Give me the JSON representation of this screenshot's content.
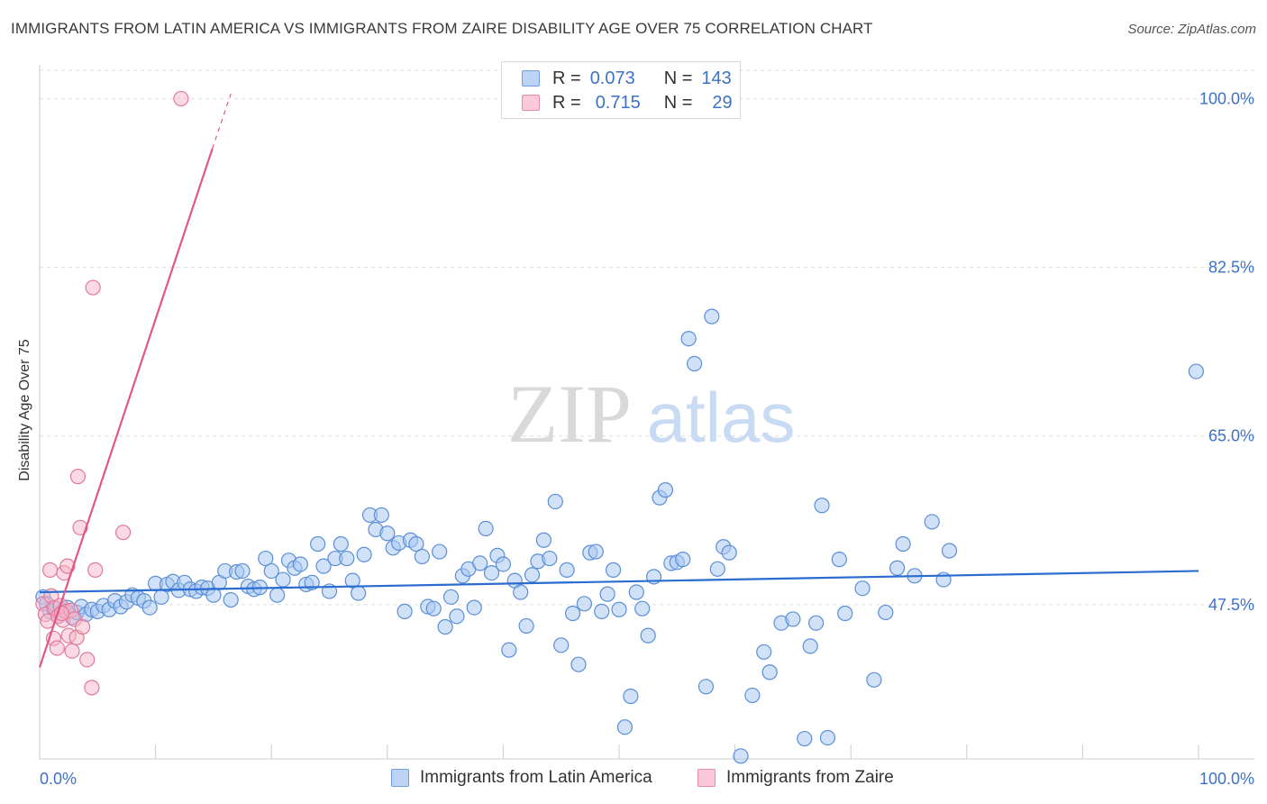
{
  "header": {
    "title": "IMMIGRANTS FROM LATIN AMERICA VS IMMIGRANTS FROM ZAIRE DISABILITY AGE OVER 75 CORRELATION CHART",
    "source": "Source: ZipAtlas.com"
  },
  "watermark": {
    "zip": "ZIP",
    "atlas": "atlas"
  },
  "legend_top": {
    "rows": [
      {
        "r_label": "R =",
        "r_value": "0.073",
        "n_label": "N =",
        "n_value": "143"
      },
      {
        "r_label": "R =",
        "r_value": "0.715",
        "n_label": "N =",
        "n_value": "29"
      }
    ]
  },
  "legend_bottom": {
    "items": [
      {
        "label": "Immigrants from Latin America"
      },
      {
        "label": "Immigrants from Zaire"
      }
    ]
  },
  "colors": {
    "blue_fill": "#a9c8f2",
    "blue_stroke": "#5b8fd6",
    "blue_line": "#2a6ccf",
    "pink_fill": "#f7b6c8",
    "pink_stroke": "#e07a9c",
    "pink_line": "#e0578a",
    "tick_text": "#3d72c6",
    "grid": "#dddddd"
  },
  "chart_data": {
    "type": "scatter",
    "xlabel": "",
    "ylabel": "Disability Age Over 75",
    "xlim": [
      0,
      100
    ],
    "ylim": [
      31.5,
      103.5
    ],
    "x_tick_labels": [
      "0.0%",
      "100.0%"
    ],
    "y_ticks": [
      {
        "value": 47.5,
        "label": "47.5%"
      },
      {
        "value": 65.0,
        "label": "65.0%"
      },
      {
        "value": 82.5,
        "label": "82.5%"
      },
      {
        "value": 100.0,
        "label": "100.0%"
      }
    ],
    "grid": true,
    "legend_position": "top-center",
    "series": [
      {
        "name": "Immigrants from Latin America",
        "r": 0.073,
        "n": 143,
        "trend": {
          "x": [
            0,
            100
          ],
          "y": [
            48.8,
            51.0
          ]
        },
        "points": [
          [
            0.3,
            48.3
          ],
          [
            0.6,
            47.6
          ],
          [
            0.9,
            46.8
          ],
          [
            1.2,
            47.1
          ],
          [
            1.6,
            46.3
          ],
          [
            2.0,
            46.9
          ],
          [
            2.4,
            47.2
          ],
          [
            2.8,
            46.2
          ],
          [
            3.2,
            46.7
          ],
          [
            3.6,
            47.3
          ],
          [
            4.0,
            46.5
          ],
          [
            4.5,
            47.0
          ],
          [
            5.0,
            46.8
          ],
          [
            5.5,
            47.4
          ],
          [
            6.0,
            47.0
          ],
          [
            6.5,
            47.9
          ],
          [
            7.0,
            47.3
          ],
          [
            7.5,
            47.8
          ],
          [
            8.0,
            48.5
          ],
          [
            8.5,
            48.2
          ],
          [
            9.0,
            47.9
          ],
          [
            9.5,
            47.2
          ],
          [
            10.0,
            49.7
          ],
          [
            10.5,
            48.3
          ],
          [
            11.0,
            49.6
          ],
          [
            11.5,
            49.9
          ],
          [
            12.0,
            49.0
          ],
          [
            12.5,
            49.8
          ],
          [
            13.0,
            49.1
          ],
          [
            13.5,
            48.9
          ],
          [
            14.0,
            49.3
          ],
          [
            14.5,
            49.2
          ],
          [
            15.0,
            48.5
          ],
          [
            15.5,
            49.8
          ],
          [
            16.0,
            51.0
          ],
          [
            16.5,
            48.0
          ],
          [
            17.0,
            50.9
          ],
          [
            17.5,
            51.0
          ],
          [
            18.0,
            49.4
          ],
          [
            18.5,
            49.1
          ],
          [
            19.0,
            49.3
          ],
          [
            19.5,
            52.3
          ],
          [
            20.0,
            51.0
          ],
          [
            20.5,
            48.5
          ],
          [
            21.0,
            50.1
          ],
          [
            21.5,
            52.1
          ],
          [
            22.0,
            51.3
          ],
          [
            22.5,
            51.7
          ],
          [
            23.0,
            49.6
          ],
          [
            23.5,
            49.8
          ],
          [
            24.0,
            53.8
          ],
          [
            24.5,
            51.5
          ],
          [
            25.0,
            48.9
          ],
          [
            25.5,
            52.3
          ],
          [
            26.0,
            53.8
          ],
          [
            26.5,
            52.3
          ],
          [
            27.0,
            50.0
          ],
          [
            27.5,
            48.7
          ],
          [
            28.0,
            52.7
          ],
          [
            28.5,
            56.8
          ],
          [
            29.0,
            55.3
          ],
          [
            29.5,
            56.8
          ],
          [
            30.0,
            54.9
          ],
          [
            30.5,
            53.4
          ],
          [
            31.0,
            53.9
          ],
          [
            31.5,
            46.8
          ],
          [
            32.0,
            54.2
          ],
          [
            32.5,
            53.8
          ],
          [
            33.0,
            52.5
          ],
          [
            33.5,
            47.3
          ],
          [
            34.0,
            47.1
          ],
          [
            34.5,
            53.0
          ],
          [
            35.0,
            45.2
          ],
          [
            35.5,
            48.3
          ],
          [
            36.0,
            46.3
          ],
          [
            36.5,
            50.5
          ],
          [
            37.0,
            51.2
          ],
          [
            37.5,
            47.2
          ],
          [
            38.0,
            51.8
          ],
          [
            38.5,
            55.4
          ],
          [
            39.0,
            50.8
          ],
          [
            39.5,
            52.6
          ],
          [
            40.0,
            51.7
          ],
          [
            40.5,
            42.8
          ],
          [
            41.0,
            50.0
          ],
          [
            41.5,
            48.8
          ],
          [
            42.0,
            45.3
          ],
          [
            42.5,
            50.6
          ],
          [
            43.0,
            52.0
          ],
          [
            43.5,
            54.2
          ],
          [
            44.0,
            52.3
          ],
          [
            44.5,
            58.2
          ],
          [
            45.0,
            43.3
          ],
          [
            45.5,
            51.1
          ],
          [
            46.0,
            46.6
          ],
          [
            46.5,
            41.3
          ],
          [
            47.0,
            47.6
          ],
          [
            47.5,
            52.9
          ],
          [
            48.0,
            53.0
          ],
          [
            48.5,
            46.8
          ],
          [
            49.0,
            48.6
          ],
          [
            49.5,
            51.1
          ],
          [
            50.0,
            47.0
          ],
          [
            50.5,
            34.8
          ],
          [
            51.0,
            38.0
          ],
          [
            51.5,
            48.8
          ],
          [
            52.0,
            47.1
          ],
          [
            52.5,
            44.3
          ],
          [
            53.0,
            50.4
          ],
          [
            53.5,
            58.6
          ],
          [
            54.0,
            59.4
          ],
          [
            54.5,
            51.8
          ],
          [
            55.0,
            51.9
          ],
          [
            55.5,
            52.2
          ],
          [
            56.0,
            75.1
          ],
          [
            56.5,
            72.5
          ],
          [
            57.5,
            39.0
          ],
          [
            58.0,
            77.4
          ],
          [
            58.5,
            51.2
          ],
          [
            59.0,
            53.5
          ],
          [
            59.5,
            52.9
          ],
          [
            60.5,
            31.8
          ],
          [
            61.5,
            38.1
          ],
          [
            62.5,
            42.6
          ],
          [
            63.0,
            40.5
          ],
          [
            64.0,
            45.6
          ],
          [
            65.0,
            46.0
          ],
          [
            66.0,
            33.6
          ],
          [
            66.5,
            43.2
          ],
          [
            67.0,
            45.6
          ],
          [
            67.5,
            57.8
          ],
          [
            68.0,
            33.7
          ],
          [
            69.0,
            52.2
          ],
          [
            69.5,
            46.6
          ],
          [
            71.0,
            49.2
          ],
          [
            72.0,
            39.7
          ],
          [
            73.0,
            46.7
          ],
          [
            74.0,
            51.3
          ],
          [
            74.5,
            53.8
          ],
          [
            75.5,
            50.5
          ],
          [
            77.0,
            56.1
          ],
          [
            78.0,
            50.1
          ],
          [
            78.5,
            53.1
          ],
          [
            99.8,
            71.7
          ]
        ]
      },
      {
        "name": "Immigrants from Zaire",
        "r": 0.715,
        "n": 29,
        "trend": {
          "x": [
            0,
            14.9
          ],
          "y": [
            41.0,
            94.8
          ]
        },
        "trend_dashed": {
          "x": [
            14.9,
            16.5
          ],
          "y": [
            94.8,
            100.5
          ]
        },
        "points": [
          [
            0.3,
            47.6
          ],
          [
            0.5,
            46.5
          ],
          [
            0.7,
            45.8
          ],
          [
            0.9,
            51.1
          ],
          [
            1.0,
            48.4
          ],
          [
            1.2,
            44.0
          ],
          [
            1.3,
            47.2
          ],
          [
            1.5,
            43.0
          ],
          [
            1.6,
            46.3
          ],
          [
            1.8,
            47.4
          ],
          [
            2.0,
            45.9
          ],
          [
            2.1,
            50.8
          ],
          [
            2.3,
            46.8
          ],
          [
            2.4,
            51.5
          ],
          [
            2.5,
            44.3
          ],
          [
            2.7,
            46.9
          ],
          [
            2.8,
            42.7
          ],
          [
            3.0,
            46.0
          ],
          [
            3.2,
            44.1
          ],
          [
            3.3,
            60.8
          ],
          [
            3.5,
            55.5
          ],
          [
            3.7,
            45.2
          ],
          [
            4.1,
            41.8
          ],
          [
            4.5,
            38.9
          ],
          [
            4.6,
            80.4
          ],
          [
            4.8,
            51.1
          ],
          [
            7.2,
            55.0
          ],
          [
            12.2,
            100.0
          ],
          [
            1.9,
            46.6
          ]
        ]
      }
    ]
  }
}
